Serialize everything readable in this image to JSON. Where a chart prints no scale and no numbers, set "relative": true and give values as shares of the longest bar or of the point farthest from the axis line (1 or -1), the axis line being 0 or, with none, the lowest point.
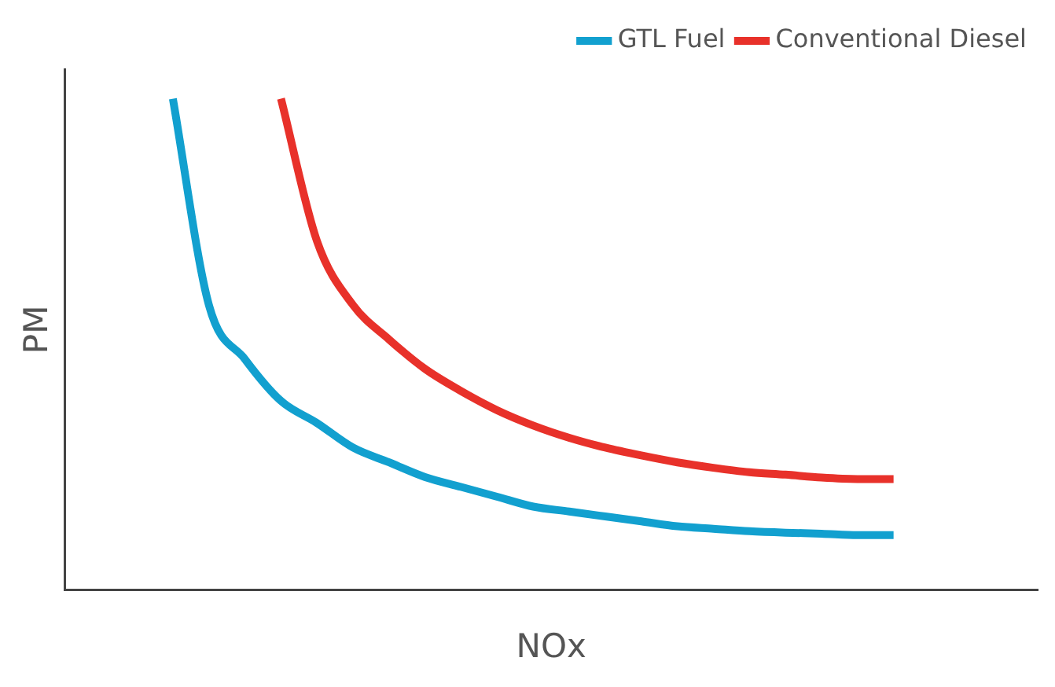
{
  "chart_data": {
    "type": "line",
    "relative": true,
    "xlabel": "NOx",
    "ylabel": "PM",
    "legend": "top right",
    "grid": false,
    "marker": "none",
    "line_style": "solid",
    "categories": [
      null,
      null,
      null,
      null,
      null,
      null,
      null,
      null,
      null,
      null,
      null,
      null,
      null,
      null,
      null,
      null,
      null,
      null,
      null,
      null,
      null,
      null,
      null,
      null,
      null,
      null,
      null,
      null
    ],
    "series": [
      {
        "name": "GTL Fuel",
        "color": "#12a0cf",
        "values": [
          null,
          null,
          null,
          1.0,
          0.58,
          0.47,
          0.385,
          0.34,
          0.29,
          0.26,
          0.23,
          0.21,
          0.19,
          0.17,
          0.16,
          0.15,
          0.14,
          0.13,
          0.125,
          0.12,
          0.117,
          0.115,
          0.112,
          0.112,
          null,
          null,
          null,
          null
        ]
      },
      {
        "name": "Conventional Diesel",
        "color": "#e8312a",
        "values": [
          null,
          null,
          null,
          null,
          null,
          null,
          1.0,
          0.71,
          0.58,
          0.51,
          0.45,
          0.405,
          0.366,
          0.335,
          0.31,
          0.29,
          0.274,
          0.26,
          0.249,
          0.24,
          0.235,
          0.229,
          0.226,
          0.226,
          null,
          null,
          null,
          null
        ]
      }
    ]
  }
}
